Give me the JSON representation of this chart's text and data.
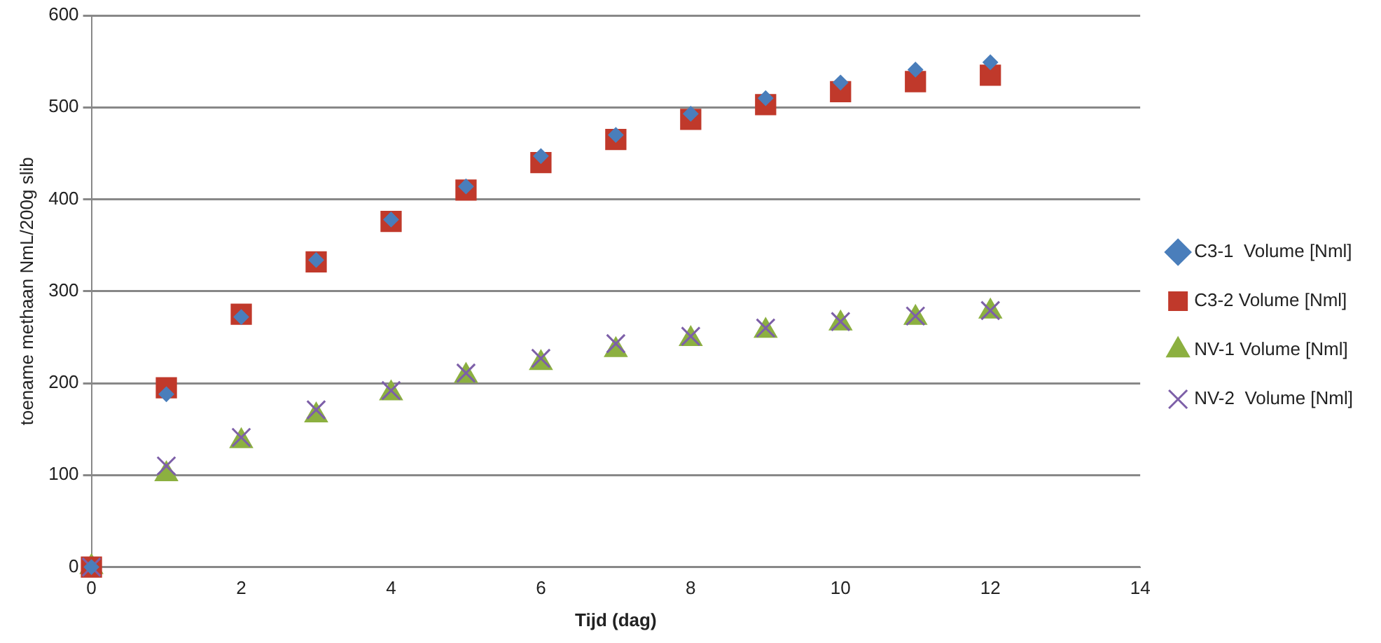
{
  "chart_data": {
    "type": "scatter",
    "xlabel": "Tijd (dag)",
    "ylabel": "toename methaan NmL/200g slib",
    "x": [
      0,
      1,
      2,
      3,
      4,
      5,
      6,
      7,
      8,
      9,
      10,
      11,
      12
    ],
    "xlim": [
      0,
      14
    ],
    "xticks": [
      0,
      2,
      4,
      6,
      8,
      10,
      12,
      14
    ],
    "ylim": [
      0,
      600
    ],
    "yticks": [
      0,
      100,
      200,
      300,
      400,
      500,
      600
    ],
    "grid": "y",
    "legend": "right",
    "series": [
      {
        "name": "C3-1  Volume [Nml]",
        "color": "#4a7ebb",
        "marker": "diamond",
        "values": [
          0,
          188,
          272,
          334,
          378,
          414,
          447,
          470,
          493,
          510,
          527,
          541,
          549
        ]
      },
      {
        "name": "C3-2 Volume [Nml]",
        "color": "#c0392b",
        "marker": "square",
        "values": [
          0,
          195,
          275,
          332,
          376,
          410,
          440,
          465,
          487,
          503,
          517,
          528,
          535
        ]
      },
      {
        "name": "NV-1 Volume [Nml]",
        "color": "#8cb040",
        "marker": "triangle",
        "values": [
          0,
          101,
          137,
          165,
          189,
          208,
          222,
          236,
          248,
          257,
          265,
          271,
          278
        ]
      },
      {
        "name": "NV-2  Volume [Nml]",
        "color": "#7d5fa8",
        "marker": "cross",
        "values": [
          0,
          110,
          141,
          171,
          192,
          211,
          227,
          243,
          251,
          260,
          267,
          273,
          279
        ]
      }
    ]
  }
}
